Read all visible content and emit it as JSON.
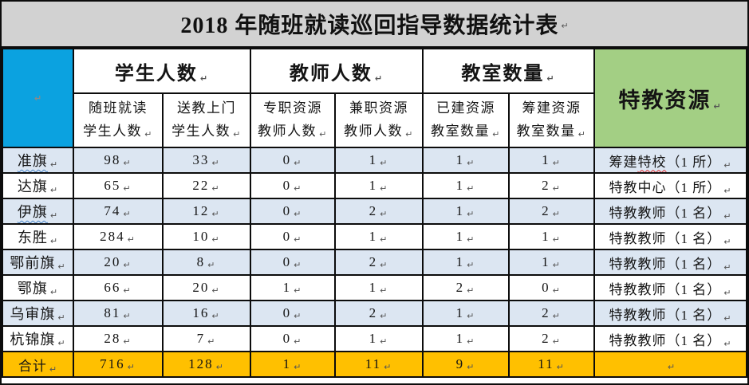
{
  "meta": {
    "return_mark": "↵"
  },
  "title": "2018 年随班就读巡回指导数据统计表",
  "colors": {
    "header_blue": "#0ba2e0",
    "header_green": "#a3cf84",
    "row_shade_blue": "#dce6f2",
    "total_orange": "#ffc000",
    "title_bar_gray": "#d2d2d2",
    "grid_line": "#0c0c0c"
  },
  "table": {
    "groups": [
      {
        "label": "学生人数"
      },
      {
        "label": "教师人数"
      },
      {
        "label": "教室数量"
      }
    ],
    "special_header": "特教资源",
    "subheaders": [
      {
        "line1": "随班就读",
        "line2": "学生人数"
      },
      {
        "line1": "送教上门",
        "line2": "学生人数"
      },
      {
        "line1": "专职资源",
        "line2": "教师人数"
      },
      {
        "line1": "兼职资源",
        "line2": "教师人数"
      },
      {
        "line1": "已建资源",
        "line2": "教室数量"
      },
      {
        "line1": "筹建资源",
        "line2": "教室数量"
      }
    ],
    "rows": [
      {
        "name": "准旗",
        "name_wavy": true,
        "values": [
          "98",
          "33",
          "0",
          "1",
          "1",
          "1"
        ],
        "resource": "筹建特校（1 所）",
        "resource_wavy_part": "特校"
      },
      {
        "name": "达旗",
        "name_wavy": false,
        "values": [
          "65",
          "22",
          "0",
          "1",
          "1",
          "2"
        ],
        "resource": "特教中心（1 所）"
      },
      {
        "name": "伊旗",
        "name_wavy": true,
        "values": [
          "74",
          "12",
          "0",
          "2",
          "1",
          "2"
        ],
        "resource": "特教教师（1 名）"
      },
      {
        "name": "东胜",
        "name_wavy": false,
        "values": [
          "284",
          "10",
          "0",
          "1",
          "1",
          "1"
        ],
        "resource": "特教教师（1 名）"
      },
      {
        "name": "鄂前旗",
        "name_wavy": false,
        "values": [
          "20",
          "8",
          "0",
          "2",
          "1",
          "1"
        ],
        "resource": "特教教师（1 名）"
      },
      {
        "name": "鄂旗",
        "name_wavy": false,
        "values": [
          "66",
          "20",
          "1",
          "1",
          "2",
          "0"
        ],
        "resource": "特教教师（1 名）"
      },
      {
        "name": "乌审旗",
        "name_wavy": false,
        "values": [
          "81",
          "16",
          "0",
          "2",
          "1",
          "2"
        ],
        "resource": "特教教师（1 名）"
      },
      {
        "name": "杭锦旗",
        "name_wavy": false,
        "values": [
          "28",
          "7",
          "0",
          "1",
          "1",
          "2"
        ],
        "resource": "特教教师（1 名）"
      }
    ],
    "total_row": {
      "name": "合计",
      "values": [
        "716",
        "128",
        "1",
        "11",
        "9",
        "11"
      ],
      "resource": ""
    }
  }
}
